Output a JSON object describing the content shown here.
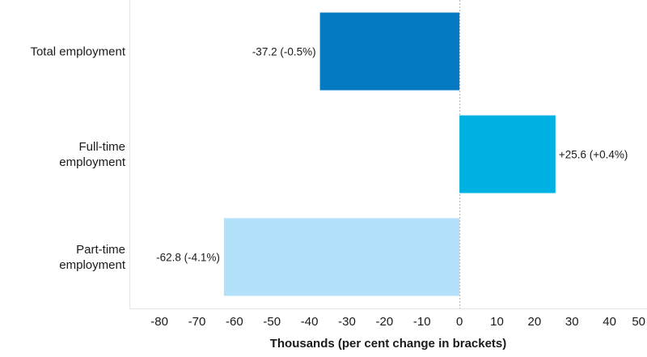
{
  "chart_data": {
    "type": "bar",
    "orientation": "horizontal",
    "categories": [
      [
        "Total employment"
      ],
      [
        "Full-time",
        "employment"
      ],
      [
        "Part-time",
        "employment"
      ]
    ],
    "values": [
      -37.2,
      25.6,
      -62.8
    ],
    "data_labels": [
      "-37.2 (-0.5%)",
      "+25.6 (+0.4%)",
      "-62.8 (-4.1%)"
    ],
    "colors": [
      "#0579c1",
      "#00b2e3",
      "#b3e1f9"
    ],
    "xlabel": "Thousands (per cent change in brackets)",
    "xlim": [
      -88,
      50
    ],
    "xticks": [
      -80,
      -70,
      -60,
      -50,
      -40,
      -30,
      -20,
      -10,
      0,
      10,
      20,
      30,
      40,
      50
    ],
    "grid": false,
    "zero_line_style": "dotted"
  }
}
